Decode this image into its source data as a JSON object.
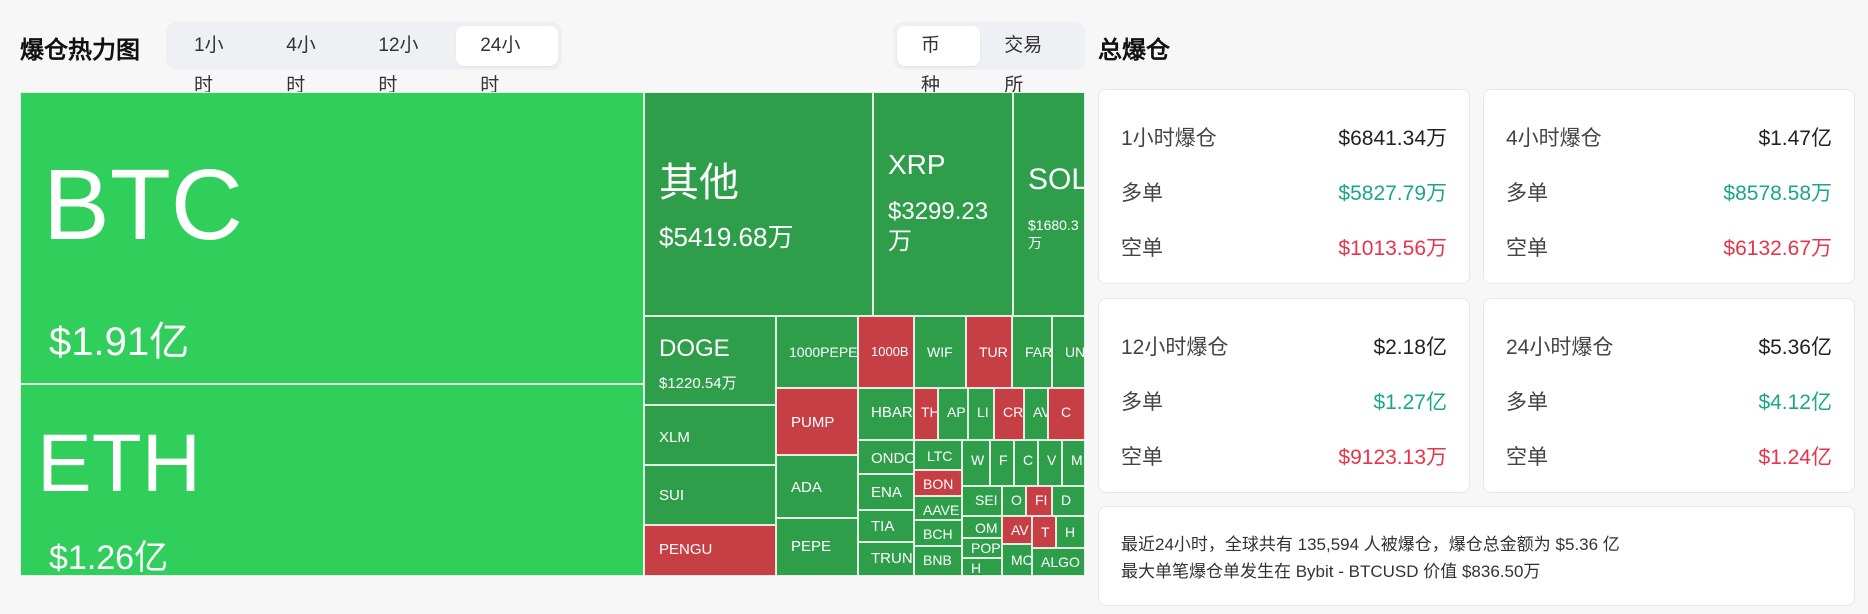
{
  "heatmap_title": "爆仓热力图",
  "time_tabs": [
    "1小时",
    "4小时",
    "12小时",
    "24小时"
  ],
  "time_tab_active": 3,
  "group_tabs": [
    "币种",
    "交易所"
  ],
  "group_tab_active": 0,
  "total_title": "总爆仓",
  "colors": {
    "long_green": "#1aa68a",
    "short_red": "#e8334a",
    "tile_green_bright": "#30ce5a",
    "tile_green": "#2f9e4b",
    "tile_red": "#c53f45"
  },
  "treemap": [
    {
      "sym": "BTC",
      "val": "$1.91亿",
      "color": "bright"
    },
    {
      "sym": "ETH",
      "val": "$1.26亿",
      "color": "bright"
    },
    {
      "sym": "其他",
      "val": "$5419.68万",
      "color": "green"
    },
    {
      "sym": "XRP",
      "val": "$3299.23万",
      "color": "green"
    },
    {
      "sym": "SOL",
      "val": "$1680.3万",
      "color": "green"
    },
    {
      "sym": "DOGE",
      "val": "$1220.54万",
      "color": "green"
    },
    {
      "sym": "1000PEPE",
      "color": "green"
    },
    {
      "sym": "1000B",
      "color": "red"
    },
    {
      "sym": "WIF",
      "color": "green"
    },
    {
      "sym": "TUR",
      "color": "red"
    },
    {
      "sym": "FAR",
      "color": "green"
    },
    {
      "sym": "UN",
      "color": "green"
    },
    {
      "sym": "XLM",
      "color": "green"
    },
    {
      "sym": "PUMP",
      "color": "red"
    },
    {
      "sym": "HBAR",
      "color": "green"
    },
    {
      "sym": "TH",
      "color": "red"
    },
    {
      "sym": "AP",
      "color": "green"
    },
    {
      "sym": "LI",
      "color": "green"
    },
    {
      "sym": "CR",
      "color": "red"
    },
    {
      "sym": "AV",
      "color": "green"
    },
    {
      "sym": "C",
      "color": "red"
    },
    {
      "sym": "SUI",
      "color": "green"
    },
    {
      "sym": "ADA",
      "color": "green"
    },
    {
      "sym": "ONDO",
      "color": "green"
    },
    {
      "sym": "LTC",
      "color": "green"
    },
    {
      "sym": "W",
      "color": "green"
    },
    {
      "sym": "F",
      "color": "green"
    },
    {
      "sym": "C",
      "color": "green"
    },
    {
      "sym": "V",
      "color": "green"
    },
    {
      "sym": "M",
      "color": "green"
    },
    {
      "sym": "ENA",
      "color": "green"
    },
    {
      "sym": "BON",
      "color": "red"
    },
    {
      "sym": "AAVE",
      "color": "green"
    },
    {
      "sym": "SEI",
      "color": "green"
    },
    {
      "sym": "O",
      "color": "green"
    },
    {
      "sym": "FI",
      "color": "red"
    },
    {
      "sym": "D",
      "color": "green"
    },
    {
      "sym": "PENGU",
      "color": "red"
    },
    {
      "sym": "PEPE",
      "color": "green"
    },
    {
      "sym": "TIA",
      "color": "green"
    },
    {
      "sym": "BCH",
      "color": "green"
    },
    {
      "sym": "OM",
      "color": "green"
    },
    {
      "sym": "AV",
      "color": "red"
    },
    {
      "sym": "T",
      "color": "red"
    },
    {
      "sym": "H",
      "color": "green"
    },
    {
      "sym": "TRUN",
      "color": "green"
    },
    {
      "sym": "BNB",
      "color": "green"
    },
    {
      "sym": "POP",
      "color": "green"
    },
    {
      "sym": "H",
      "color": "green"
    },
    {
      "sym": "MC",
      "color": "green"
    },
    {
      "sym": "ALGO",
      "color": "green"
    }
  ],
  "cards": [
    {
      "title": "1小时爆仓",
      "total": "$6841.34万",
      "long_label": "多单",
      "long": "$5827.79万",
      "short_label": "空单",
      "short": "$1013.56万"
    },
    {
      "title": "4小时爆仓",
      "total": "$1.47亿",
      "long_label": "多单",
      "long": "$8578.58万",
      "short_label": "空单",
      "short": "$6132.67万"
    },
    {
      "title": "12小时爆仓",
      "total": "$2.18亿",
      "long_label": "多单",
      "long": "$1.27亿",
      "short_label": "空单",
      "short": "$9123.13万"
    },
    {
      "title": "24小时爆仓",
      "total": "$5.36亿",
      "long_label": "多单",
      "long": "$4.12亿",
      "short_label": "空单",
      "short": "$1.24亿"
    }
  ],
  "summary": {
    "line1": "最近24小时，全球共有 135,594 人被爆仓，爆仓总金额为 $5.36 亿",
    "line2": "最大单笔爆仓单发生在 Bybit - BTCUSD 价值 $836.50万"
  }
}
